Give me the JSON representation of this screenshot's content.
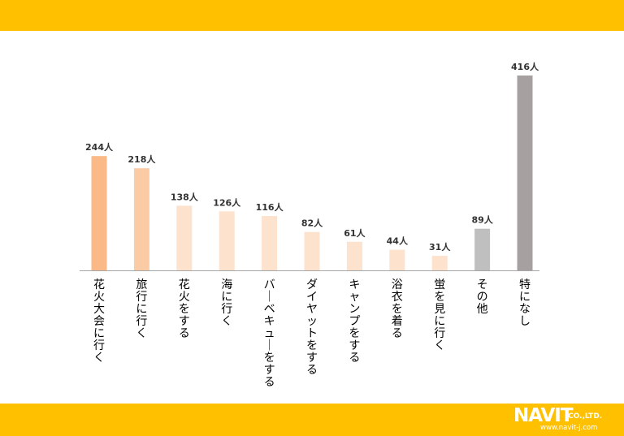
{
  "colors": {
    "band": "#FFC000",
    "axis": "#A6A6A6",
    "text": "#333333"
  },
  "chart_data": {
    "type": "bar",
    "title": "",
    "xlabel": "",
    "ylabel": "",
    "ylim": [
      0,
      416
    ],
    "grid": false,
    "legend": "none",
    "value_suffix": "人",
    "categories": [
      "花火大会に行く",
      "旅行に行く",
      "花火をする",
      "海に行く",
      "バーベキューをする",
      "ダイヤットをする",
      "キャンプをする",
      "浴衣を着る",
      "蛍を見に行く",
      "その他",
      "特になし"
    ],
    "values": [
      244,
      218,
      138,
      126,
      116,
      82,
      61,
      44,
      31,
      89,
      416
    ],
    "data_labels": [
      "244人",
      "218人",
      "138人",
      "126人",
      "116人",
      "82人",
      "61人",
      "44人",
      "31人",
      "89人",
      "416人"
    ],
    "bar_colors": [
      "#FAB987",
      "#FBCBA6",
      "#FDE2CE",
      "#FDE2CE",
      "#FDE2CE",
      "#FDE2CE",
      "#FDE2CE",
      "#FDE2CE",
      "#FDE2CE",
      "#BFBFBF",
      "#A6A0A0"
    ]
  },
  "logo": {
    "name": "NAVIT",
    "suffix": "CO.,LTD.",
    "url": "www.navit-j.com"
  }
}
